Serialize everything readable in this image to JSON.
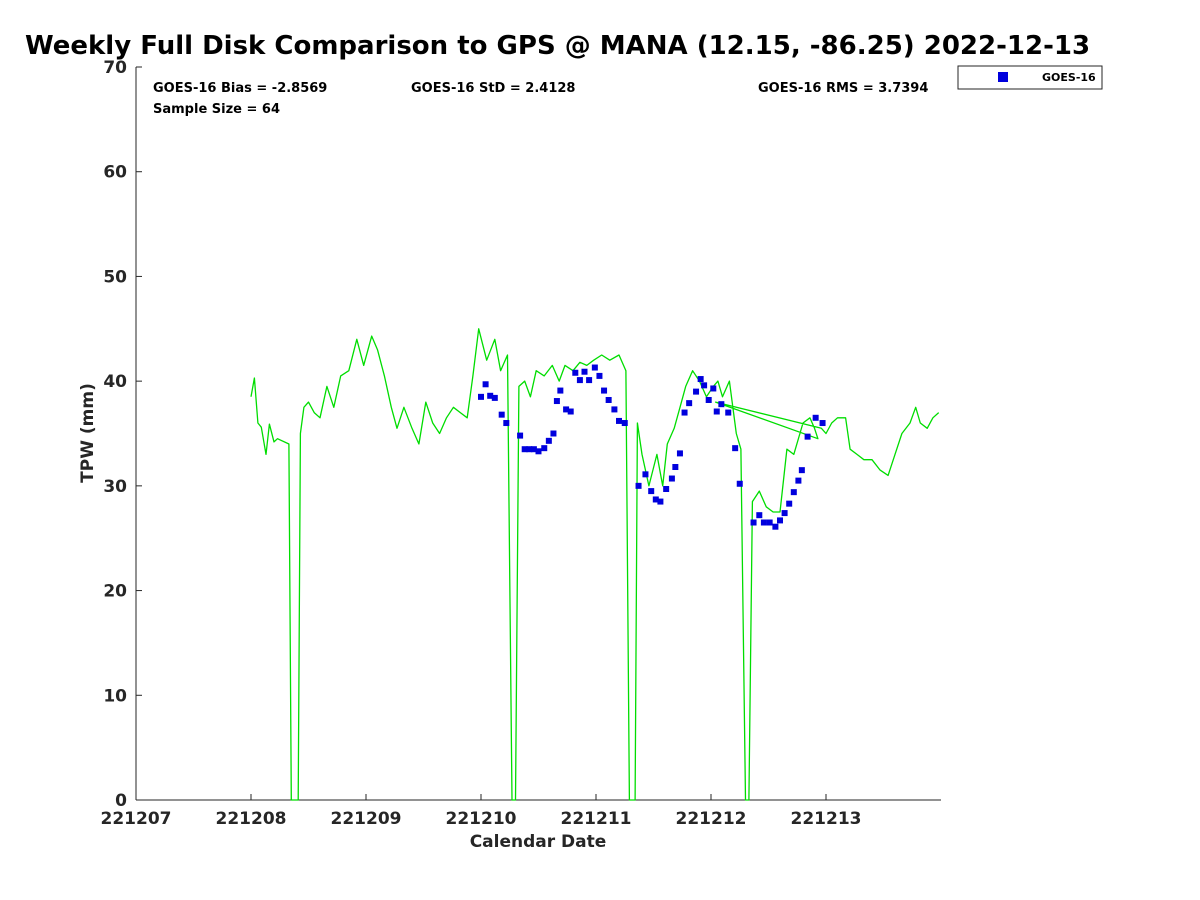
{
  "chart_data": {
    "type": "line+scatter",
    "title": "Weekly Full Disk Comparison to GPS @ MANA (12.15, -86.25) 2022-12-13",
    "xlabel": "Calendar Date",
    "ylabel": "TPW (mm)",
    "xlim": [
      221207,
      221214
    ],
    "ylim": [
      0,
      70
    ],
    "x_ticks": [
      221207,
      221208,
      221209,
      221210,
      221211,
      221212,
      221213
    ],
    "x_tick_labels": [
      "221207",
      "221208",
      "221209",
      "221210",
      "221211",
      "221212",
      "221213"
    ],
    "y_ticks": [
      0,
      10,
      20,
      30,
      40,
      50,
      60,
      70
    ],
    "y_tick_labels": [
      "0",
      "10",
      "20",
      "30",
      "40",
      "50",
      "60",
      "70"
    ],
    "stats": {
      "bias": "GOES-16 Bias = -2.8569",
      "std": "GOES-16 StD = 2.4128",
      "rms": "GOES-16 RMS = 3.7394",
      "sample": "Sample Size = 64"
    },
    "legend": [
      {
        "name": "GOES-16",
        "color": "#0000dd",
        "marker": "square"
      }
    ],
    "series": [
      {
        "name": "GPS",
        "type": "line",
        "color": "#00dd00",
        "points": [
          [
            221208.0,
            38.5
          ],
          [
            221208.03,
            40.3
          ],
          [
            221208.06,
            36.0
          ],
          [
            221208.09,
            35.6
          ],
          [
            221208.13,
            33.0
          ],
          [
            221208.16,
            35.9
          ],
          [
            221208.2,
            34.2
          ],
          [
            221208.23,
            34.5
          ],
          [
            221208.33,
            34.0
          ],
          [
            221208.35,
            0
          ],
          [
            221208.41,
            0
          ],
          [
            221208.43,
            35.0
          ],
          [
            221208.46,
            37.5
          ],
          [
            221208.5,
            38.0
          ],
          [
            221208.55,
            37.0
          ],
          [
            221208.6,
            36.5
          ],
          [
            221208.66,
            39.5
          ],
          [
            221208.72,
            37.5
          ],
          [
            221208.78,
            40.5
          ],
          [
            221208.85,
            41.0
          ],
          [
            221208.92,
            44.0
          ],
          [
            221208.98,
            41.5
          ],
          [
            221209.05,
            44.3
          ],
          [
            221209.1,
            43.0
          ],
          [
            221209.16,
            40.5
          ],
          [
            221209.22,
            37.5
          ],
          [
            221209.27,
            35.5
          ],
          [
            221209.33,
            37.5
          ],
          [
            221209.4,
            35.5
          ],
          [
            221209.46,
            34.0
          ],
          [
            221209.52,
            38.0
          ],
          [
            221209.58,
            36.0
          ],
          [
            221209.64,
            35.0
          ],
          [
            221209.7,
            36.5
          ],
          [
            221209.76,
            37.5
          ],
          [
            221209.82,
            37.0
          ],
          [
            221209.88,
            36.5
          ],
          [
            221209.93,
            40.5
          ],
          [
            221209.98,
            45.0
          ],
          [
            221210.05,
            42.0
          ],
          [
            221210.12,
            44.0
          ],
          [
            221210.17,
            41.0
          ],
          [
            221210.23,
            42.5
          ],
          [
            221210.27,
            0
          ],
          [
            221210.3,
            0
          ],
          [
            221210.33,
            39.5
          ],
          [
            221210.38,
            40.0
          ],
          [
            221210.43,
            38.5
          ],
          [
            221210.48,
            41.0
          ],
          [
            221210.55,
            40.5
          ],
          [
            221210.62,
            41.5
          ],
          [
            221210.68,
            40.0
          ],
          [
            221210.73,
            41.5
          ],
          [
            221210.8,
            41.0
          ],
          [
            221210.86,
            41.8
          ],
          [
            221210.92,
            41.5
          ],
          [
            221210.98,
            42.0
          ],
          [
            221211.05,
            42.5
          ],
          [
            221211.12,
            42.0
          ],
          [
            221211.2,
            42.5
          ],
          [
            221211.26,
            41.0
          ],
          [
            221211.29,
            0
          ],
          [
            221211.34,
            0
          ],
          [
            221211.36,
            36.0
          ],
          [
            221211.4,
            33.0
          ],
          [
            221211.46,
            30.0
          ],
          [
            221211.53,
            33.0
          ],
          [
            221211.58,
            30.0
          ],
          [
            221211.62,
            34.0
          ],
          [
            221211.68,
            35.5
          ],
          [
            221211.73,
            37.5
          ],
          [
            221211.78,
            39.5
          ],
          [
            221211.84,
            41.0
          ],
          [
            221211.9,
            40.0
          ],
          [
            221211.96,
            38.5
          ],
          [
            221212.02,
            39.5
          ],
          [
            221212.06,
            40.0
          ],
          [
            221212.1,
            38.5
          ],
          [
            221212.16,
            40.0
          ],
          [
            221212.22,
            35.0
          ],
          [
            221212.26,
            33.5
          ],
          [
            221212.3,
            0
          ],
          [
            221212.33,
            0
          ],
          [
            221212.36,
            28.5
          ],
          [
            221212.42,
            29.5
          ],
          [
            221212.48,
            28.0
          ],
          [
            221212.54,
            27.5
          ],
          [
            221212.6,
            27.5
          ],
          [
            221212.66,
            33.5
          ],
          [
            221212.72,
            33.0
          ],
          [
            221212.8,
            36.0
          ],
          [
            221212.86,
            36.5
          ],
          [
            221212.9,
            35.5
          ],
          [
            221212.93,
            34.5
          ],
          [
            221212.04,
            38.0
          ],
          [
            221212.96,
            35.5
          ],
          [
            221213.0,
            35.0
          ],
          [
            221213.05,
            36.0
          ],
          [
            221213.1,
            36.5
          ],
          [
            221213.17,
            36.5
          ],
          [
            221213.21,
            33.5
          ],
          [
            221213.27,
            33.0
          ],
          [
            221213.33,
            32.5
          ],
          [
            221213.4,
            32.5
          ],
          [
            221213.47,
            31.5
          ],
          [
            221213.54,
            31.0
          ],
          [
            221213.6,
            33.0
          ],
          [
            221213.66,
            35.0
          ],
          [
            221213.73,
            36.0
          ],
          [
            221213.78,
            37.5
          ],
          [
            221213.82,
            36.0
          ],
          [
            221213.88,
            35.5
          ],
          [
            221213.93,
            36.5
          ],
          [
            221213.98,
            37.0
          ]
        ]
      },
      {
        "name": "GOES-16",
        "type": "scatter",
        "color": "#0000dd",
        "points": [
          [
            221210.0,
            38.5
          ],
          [
            221210.04,
            39.7
          ],
          [
            221210.08,
            38.6
          ],
          [
            221210.12,
            38.4
          ],
          [
            221210.18,
            36.8
          ],
          [
            221210.22,
            36.0
          ],
          [
            221210.34,
            34.8
          ],
          [
            221210.38,
            33.5
          ],
          [
            221210.42,
            33.5
          ],
          [
            221210.46,
            33.5
          ],
          [
            221210.5,
            33.3
          ],
          [
            221210.55,
            33.6
          ],
          [
            221210.59,
            34.3
          ],
          [
            221210.63,
            35.0
          ],
          [
            221210.66,
            38.1
          ],
          [
            221210.69,
            39.1
          ],
          [
            221210.74,
            37.3
          ],
          [
            221210.78,
            37.1
          ],
          [
            221210.82,
            40.8
          ],
          [
            221210.86,
            40.1
          ],
          [
            221210.9,
            40.9
          ],
          [
            221210.94,
            40.1
          ],
          [
            221210.99,
            41.3
          ],
          [
            221211.03,
            40.5
          ],
          [
            221211.07,
            39.1
          ],
          [
            221211.11,
            38.2
          ],
          [
            221211.16,
            37.3
          ],
          [
            221211.2,
            36.2
          ],
          [
            221211.25,
            36.0
          ],
          [
            221211.37,
            30.0
          ],
          [
            221211.43,
            31.1
          ],
          [
            221211.48,
            29.5
          ],
          [
            221211.52,
            28.7
          ],
          [
            221211.56,
            28.5
          ],
          [
            221211.61,
            29.7
          ],
          [
            221211.66,
            30.7
          ],
          [
            221211.69,
            31.8
          ],
          [
            221211.73,
            33.1
          ],
          [
            221211.77,
            37.0
          ],
          [
            221211.81,
            37.9
          ],
          [
            221211.87,
            39.0
          ],
          [
            221211.91,
            40.2
          ],
          [
            221211.94,
            39.6
          ],
          [
            221211.98,
            38.2
          ],
          [
            221212.02,
            39.3
          ],
          [
            221212.05,
            37.1
          ],
          [
            221212.09,
            37.8
          ],
          [
            221212.15,
            37.0
          ],
          [
            221212.21,
            33.6
          ],
          [
            221212.25,
            30.2
          ],
          [
            221212.37,
            26.5
          ],
          [
            221212.42,
            27.2
          ],
          [
            221212.46,
            26.5
          ],
          [
            221212.51,
            26.5
          ],
          [
            221212.56,
            26.1
          ],
          [
            221212.6,
            26.7
          ],
          [
            221212.64,
            27.4
          ],
          [
            221212.68,
            28.3
          ],
          [
            221212.72,
            29.4
          ],
          [
            221212.76,
            30.5
          ],
          [
            221212.79,
            31.5
          ],
          [
            221212.84,
            34.7
          ],
          [
            221212.91,
            36.5
          ],
          [
            221212.97,
            36.0
          ]
        ]
      }
    ]
  }
}
